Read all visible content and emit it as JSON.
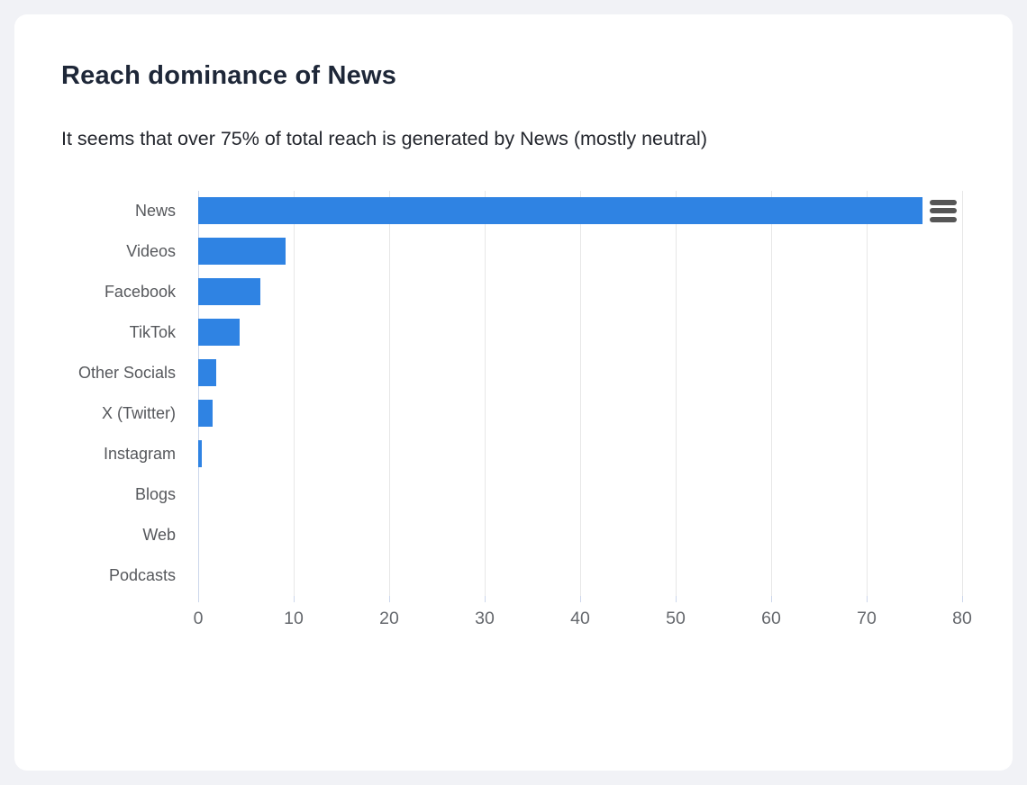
{
  "window": {
    "background": "#f1f2f6",
    "card_background": "#ffffff"
  },
  "header": {
    "title": "Reach dominance of News",
    "subtitle": "It seems that over 75% of total reach is generated by News (mostly neutral)"
  },
  "chart_data": {
    "type": "bar",
    "orientation": "horizontal",
    "title": "Reach dominance of News",
    "subtitle": "It seems that over 75% of total reach is generated by News (mostly neutral)",
    "categories": [
      "News",
      "Videos",
      "Facebook",
      "TikTok",
      "Other Socials",
      "X (Twitter)",
      "Instagram",
      "Blogs",
      "Web",
      "Podcasts"
    ],
    "values": [
      75.8,
      9.1,
      6.5,
      4.3,
      1.9,
      1.5,
      0.4,
      0,
      0,
      0
    ],
    "xlabel": "",
    "ylabel": "",
    "xlim": [
      0,
      80
    ],
    "x_ticks": [
      0,
      10,
      20,
      30,
      40,
      50,
      60,
      70,
      80
    ],
    "grid": true,
    "legend": false,
    "bar_color": "#2f83e3",
    "grid_color": "#e7e7e7",
    "axis_line_color": "#ccd6eb",
    "category_label_color": "#56585c",
    "tick_label_color": "#65686d"
  },
  "chart_menu": {
    "icon": "hamburger-menu-icon",
    "bar_color": "#565656"
  }
}
